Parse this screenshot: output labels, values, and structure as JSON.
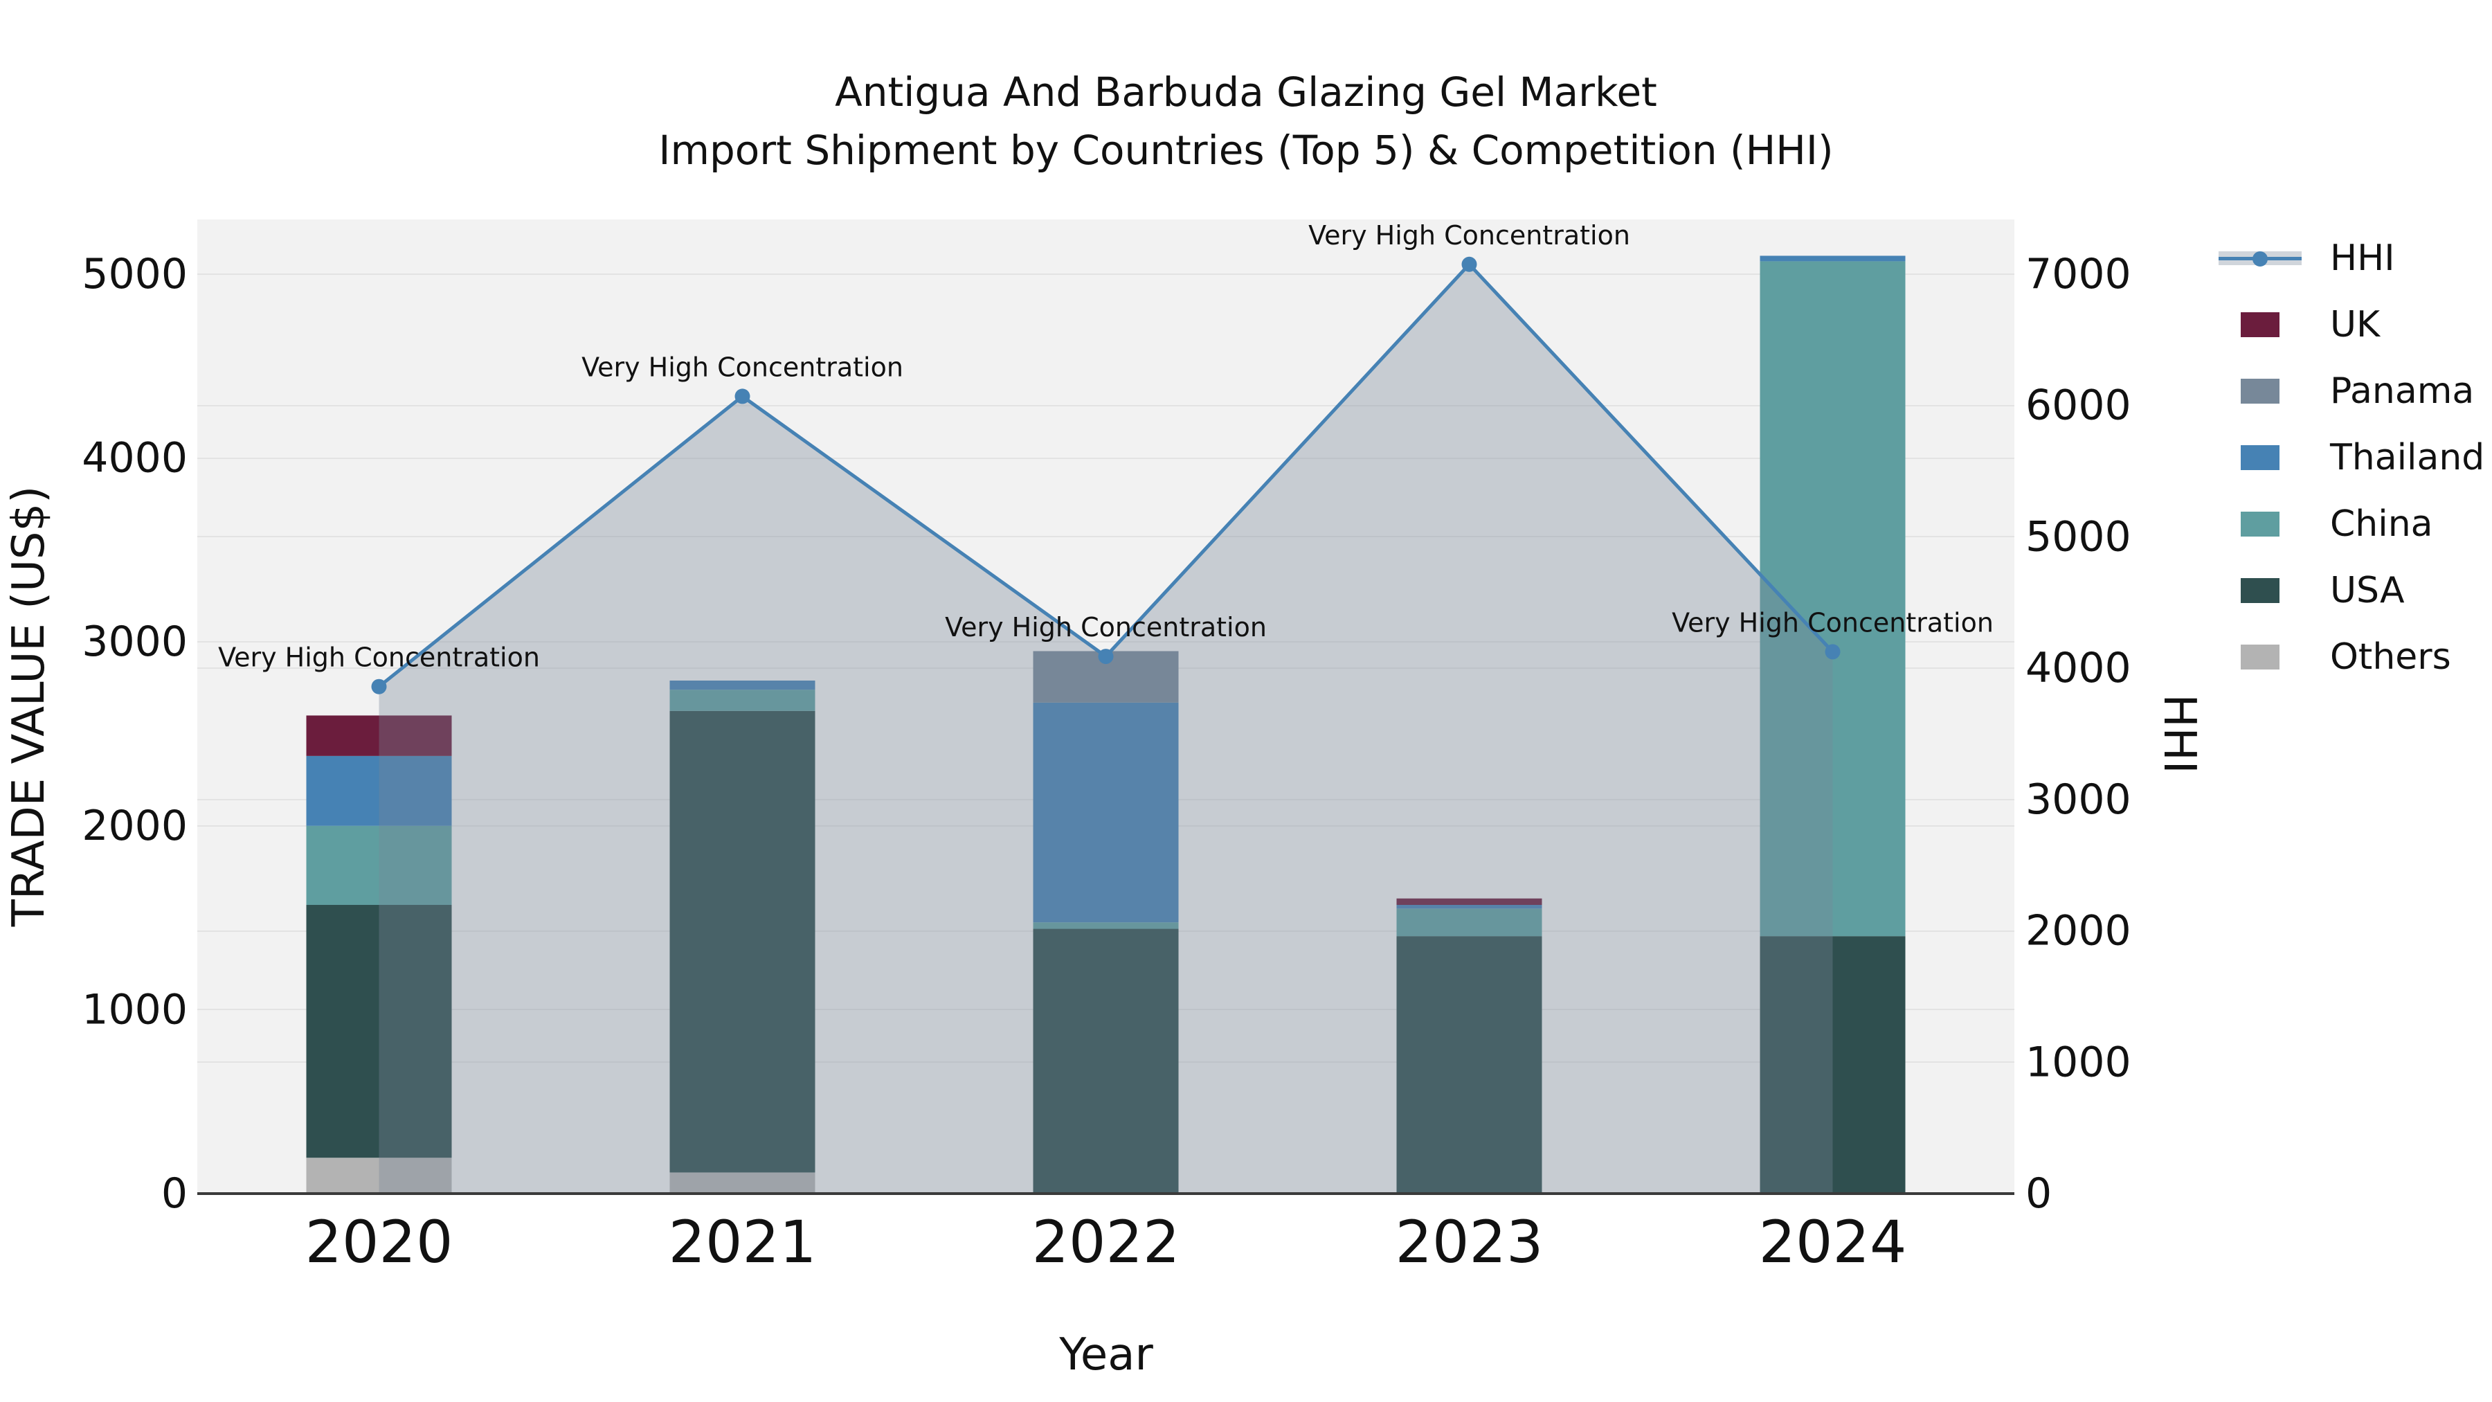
{
  "chart_data": {
    "type": "combo-stacked-bar-line",
    "title": "Antigua And Barbuda Glazing Gel Market",
    "subtitle": "Import Shipment by Countries (Top 5) & Competition (HHI)",
    "xlabel": "Year",
    "ylabel_left": "TRADE VALUE (US$)",
    "ylabel_right": "HHI",
    "categories": [
      "2020",
      "2021",
      "2022",
      "2023",
      "2024"
    ],
    "series": [
      {
        "name": "Others",
        "color": "#b3b3b3",
        "values": [
          195,
          115,
          0,
          0,
          0
        ]
      },
      {
        "name": "USA",
        "color": "#2f4f4f",
        "values": [
          1375,
          2510,
          1440,
          1400,
          1400
        ]
      },
      {
        "name": "China",
        "color": "#5f9ea0",
        "values": [
          430,
          115,
          35,
          150,
          3670
        ]
      },
      {
        "name": "Thailand",
        "color": "#4682b4",
        "values": [
          380,
          50,
          1195,
          20,
          30
        ]
      },
      {
        "name": "Panama",
        "color": "#778899",
        "values": [
          0,
          0,
          280,
          0,
          0
        ]
      },
      {
        "name": "UK",
        "color": "#6b1d3d",
        "values": [
          220,
          0,
          0,
          35,
          0
        ]
      }
    ],
    "bar_totals": [
      2600,
      2790,
      2950,
      1605,
      5100
    ],
    "hhi": {
      "name": "HHI",
      "line_color": "#4682b4",
      "area_color": "#778899",
      "area_opacity": 0.35,
      "values": [
        3860,
        6070,
        4090,
        7075,
        4125
      ]
    },
    "annotation_text": "Very High Concentration",
    "axes": {
      "left": {
        "min": 0,
        "max": 5000,
        "tick_step": 1000
      },
      "right": {
        "min": 0,
        "max": 7000,
        "tick_step": 1000
      }
    },
    "legend_order": [
      "HHI",
      "UK",
      "Panama",
      "Thailand",
      "China",
      "USA",
      "Others"
    ],
    "style": {
      "figure_bg": "#ffffff",
      "plot_bg": "#f2f2f2",
      "grid_color": "#e3e3e3",
      "axis_line_color": "#3a3a3a",
      "text_color": "#111111"
    }
  }
}
